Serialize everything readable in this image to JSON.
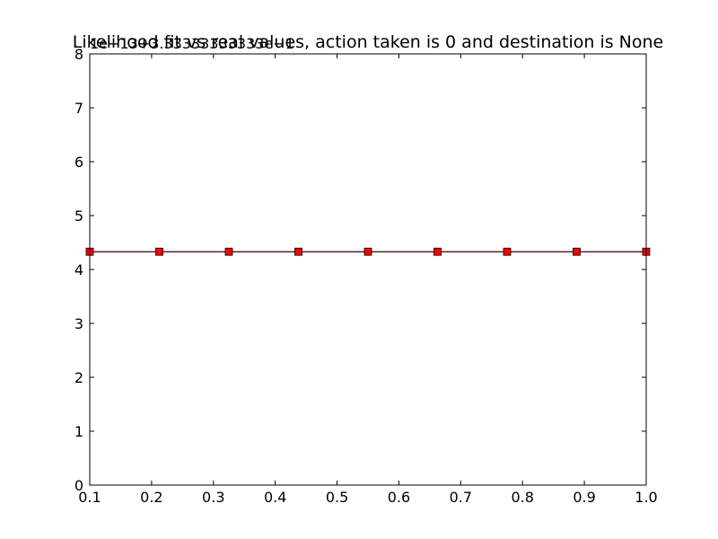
{
  "chart_data": {
    "type": "line",
    "title": "Likelihood fit vs real values, action taken is 0 and destination is None",
    "offset_label": "1e−13+3.33333333333e−1",
    "xlabel": "",
    "ylabel": "",
    "xlim": [
      0.1,
      1.0
    ],
    "ylim": [
      0,
      8
    ],
    "x_ticks": [
      "0.1",
      "0.2",
      "0.3",
      "0.4",
      "0.5",
      "0.6",
      "0.7",
      "0.8",
      "0.9",
      "1.0"
    ],
    "y_ticks": [
      "0",
      "1",
      "2",
      "3",
      "4",
      "5",
      "6",
      "7",
      "8"
    ],
    "grid": false,
    "legend": "none",
    "series": [
      {
        "style": "line",
        "color": "#ff0000",
        "x": [
          0.1,
          1.0
        ],
        "y": [
          4.33,
          4.33
        ]
      },
      {
        "style": "line-square-markers",
        "color": "#000000",
        "marker_color": "#ff0000",
        "x": [
          0.1,
          0.2125,
          0.325,
          0.4375,
          0.55,
          0.6625,
          0.775,
          0.8875,
          1.0
        ],
        "y": [
          4.33,
          4.33,
          4.33,
          4.33,
          4.33,
          4.33,
          4.33,
          4.33,
          4.33
        ]
      }
    ]
  }
}
